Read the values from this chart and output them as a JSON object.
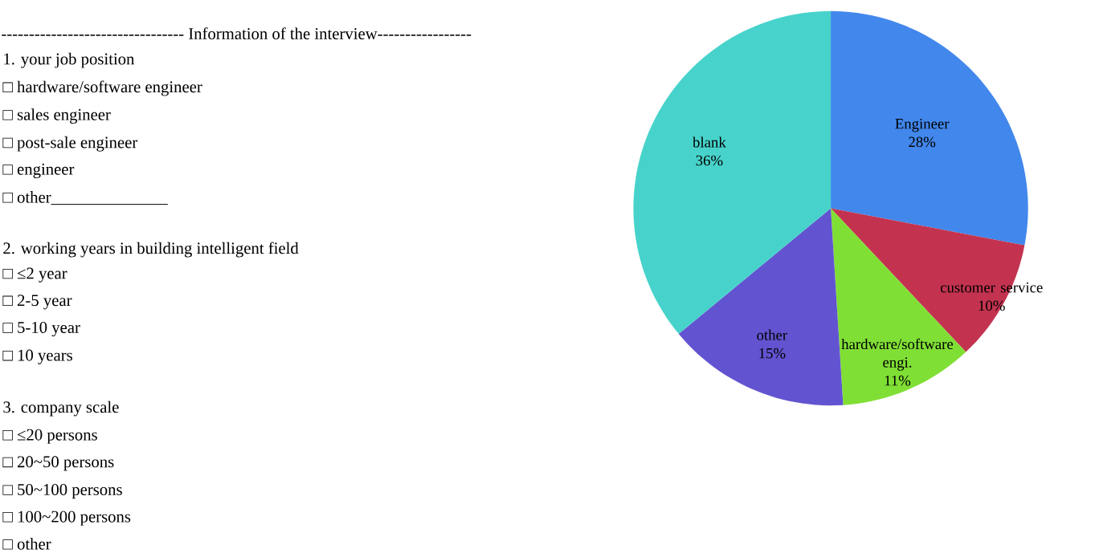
{
  "chart_data": [
    {
      "type": "other",
      "title": "--------------------------------- Information of the interview-----------------",
      "annotations": [
        "1.  your job position",
        "□ hardware/software engineer",
        "□ sales engineer",
        "□ post-sale engineer",
        "□ engineer",
        "□ other______________",
        "2. working years in building intelligent field",
        "□ ≤2 year",
        "□ 2-5 year",
        "□ 5-10 year",
        "□ 10 years",
        "3. company scale",
        "□ ≤20 persons",
        "□ 20~50 persons",
        "□ 50~100 persons",
        "□ 100~200 persons",
        "□ other"
      ]
    },
    {
      "type": "pie",
      "value_labels": [
        "28%",
        "10%",
        "11%",
        "15%",
        "36%"
      ],
      "categories": [
        "Engineer",
        "customer service",
        "hardware/software engi.",
        "other",
        "blank"
      ],
      "values": [
        28,
        10,
        11,
        15,
        36
      ],
      "colors": [
        "#4287ec",
        "#c3334f",
        "#80df35",
        "#6254d0",
        "#47d3cb"
      ]
    }
  ]
}
